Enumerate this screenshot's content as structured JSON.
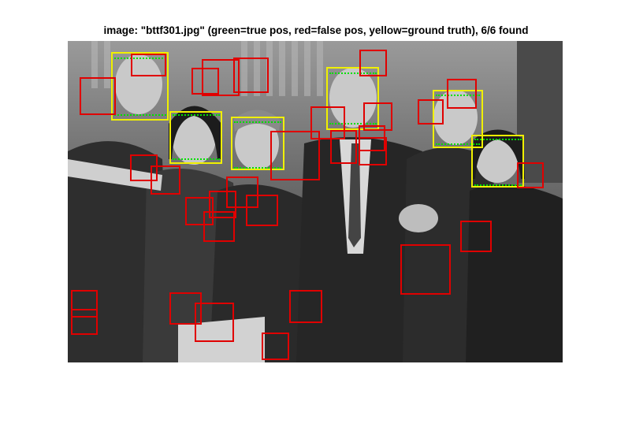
{
  "figure": {
    "title": "image: \"bttf301.jpg\" (green=true pos, red=false pos, yellow=ground truth), 6/6 found"
  },
  "legend_colors": {
    "true_pos": "#00e000",
    "false_pos": "#e00000",
    "ground_truth": "#f0f000"
  }
}
